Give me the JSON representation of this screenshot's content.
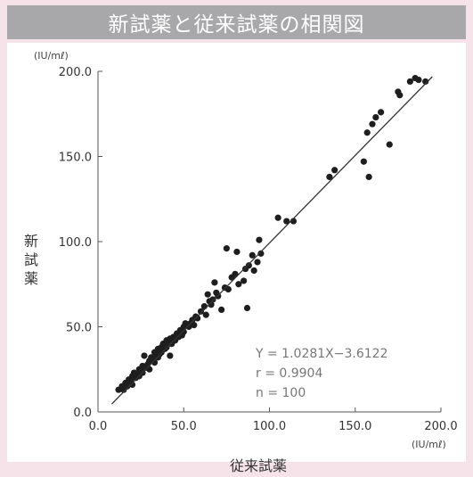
{
  "chart_data": {
    "type": "scatter",
    "title": "新試薬と従来試薬の相関図",
    "xlabel": "従来試薬",
    "ylabel": "新試薬",
    "x_unit": "(IU/mℓ)",
    "y_unit": "(IU/mℓ)",
    "xlim": [
      0,
      200
    ],
    "ylim": [
      0,
      200
    ],
    "x_ticks": [
      "0.0",
      "50.0",
      "100.0",
      "150.0",
      "200.0"
    ],
    "y_ticks": [
      "0.0",
      "50.0",
      "100.0",
      "150.0",
      "200.0"
    ],
    "grid": false,
    "fit_line": {
      "slope": 1.0281,
      "intercept": -3.6122,
      "x_range": [
        8,
        195
      ]
    },
    "annotations": [
      "Y = 1.0281X−3.6122",
      "r = 0.9904",
      "n = 100"
    ],
    "points": [
      [
        12,
        13
      ],
      [
        14,
        15
      ],
      [
        15,
        13
      ],
      [
        16,
        17
      ],
      [
        17,
        15
      ],
      [
        18,
        19
      ],
      [
        19,
        18
      ],
      [
        20,
        21
      ],
      [
        20,
        16
      ],
      [
        21,
        23
      ],
      [
        22,
        20
      ],
      [
        23,
        22
      ],
      [
        24,
        25
      ],
      [
        24,
        21
      ],
      [
        25,
        24
      ],
      [
        26,
        27
      ],
      [
        26,
        23
      ],
      [
        27,
        33
      ],
      [
        28,
        26
      ],
      [
        29,
        28
      ],
      [
        30,
        30
      ],
      [
        30,
        25
      ],
      [
        31,
        32
      ],
      [
        32,
        30
      ],
      [
        33,
        35
      ],
      [
        33,
        29
      ],
      [
        34,
        33
      ],
      [
        35,
        37
      ],
      [
        35,
        32
      ],
      [
        36,
        34
      ],
      [
        37,
        38
      ],
      [
        37,
        35
      ],
      [
        38,
        40
      ],
      [
        39,
        37
      ],
      [
        40,
        42
      ],
      [
        40,
        38
      ],
      [
        41,
        40
      ],
      [
        42,
        43
      ],
      [
        42,
        33
      ],
      [
        43,
        40
      ],
      [
        44,
        44
      ],
      [
        45,
        42
      ],
      [
        46,
        46
      ],
      [
        47,
        44
      ],
      [
        48,
        48
      ],
      [
        49,
        45
      ],
      [
        50,
        50
      ],
      [
        50,
        47
      ],
      [
        51,
        52
      ],
      [
        53,
        50
      ],
      [
        54,
        52
      ],
      [
        55,
        54
      ],
      [
        56,
        51
      ],
      [
        57,
        56
      ],
      [
        58,
        55
      ],
      [
        60,
        59
      ],
      [
        62,
        62
      ],
      [
        63,
        57
      ],
      [
        64,
        69
      ],
      [
        65,
        65
      ],
      [
        66,
        63
      ],
      [
        67,
        66
      ],
      [
        68,
        76
      ],
      [
        69,
        70
      ],
      [
        70,
        68
      ],
      [
        72,
        60
      ],
      [
        74,
        73
      ],
      [
        75,
        96
      ],
      [
        76,
        72
      ],
      [
        78,
        79
      ],
      [
        80,
        81
      ],
      [
        81,
        94
      ],
      [
        82,
        75
      ],
      [
        85,
        77
      ],
      [
        86,
        84
      ],
      [
        87,
        61
      ],
      [
        88,
        86
      ],
      [
        90,
        92
      ],
      [
        91,
        83
      ],
      [
        93,
        88
      ],
      [
        94,
        101
      ],
      [
        95,
        93
      ],
      [
        105,
        114
      ],
      [
        110,
        112
      ],
      [
        114,
        112
      ],
      [
        135,
        138
      ],
      [
        138,
        142
      ],
      [
        155,
        147
      ],
      [
        157,
        164
      ],
      [
        158,
        138
      ],
      [
        160,
        169
      ],
      [
        162,
        173
      ],
      [
        165,
        176
      ],
      [
        170,
        157
      ],
      [
        175,
        188
      ],
      [
        176,
        186
      ],
      [
        182,
        194
      ],
      [
        185,
        196
      ],
      [
        191,
        194
      ],
      [
        187,
        195
      ]
    ]
  }
}
